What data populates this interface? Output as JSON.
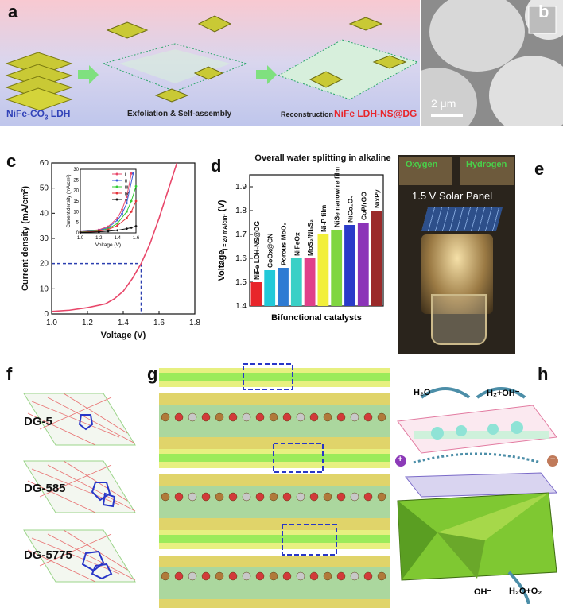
{
  "panels": {
    "a": {
      "label": "a",
      "text_ldh": "NiFe-CO",
      "text_ldh_sub": "3",
      "text_ldh_tail": " LDH",
      "text_exfoliation": "Exfoliation & Self-assembly",
      "text_reconstruction": "Reconstruction",
      "text_product": "NiFe LDH-NS@DG"
    },
    "b": {
      "label": "b",
      "scale_bar": "2 μm"
    },
    "c": {
      "label": "c"
    },
    "d": {
      "label": "d"
    },
    "e": {
      "label": "e",
      "oxygen": "Oxygen",
      "hydrogen": "Hydrogen",
      "panel_text": "1.5 V Solar Panel"
    },
    "f": {
      "label": "f",
      "structures": [
        "DG-5",
        "DG-585",
        "DG-5775"
      ]
    },
    "g": {
      "label": "g"
    },
    "h": {
      "label": "h",
      "h2o": "H₂O",
      "h2oh": "H₂+OH⁻",
      "oh": "OH⁻",
      "h2oo2": "H₂O+O₂",
      "plus": "+",
      "minus": "−"
    }
  },
  "chart_data": [
    {
      "type": "line",
      "panel": "c",
      "xlabel": "Voltage (V)",
      "ylabel": "Current density (mA/cm²)",
      "xlim": [
        1.0,
        1.8
      ],
      "ylim": [
        0,
        60
      ],
      "x_ticks": [
        "1.0",
        "1.2",
        "1.4",
        "1.6",
        "1.8"
      ],
      "y_ticks": [
        "0",
        "10",
        "20",
        "30",
        "40",
        "50",
        "60"
      ],
      "series": [
        {
          "x": [
            1.0,
            1.1,
            1.2,
            1.3,
            1.35,
            1.4,
            1.45,
            1.5,
            1.55,
            1.6,
            1.65,
            1.7
          ],
          "y": [
            1,
            1.5,
            2.5,
            4,
            6,
            9,
            14,
            20,
            28,
            38,
            49,
            60
          ],
          "color": "#e8476a"
        }
      ],
      "annotation": {
        "x": 1.5,
        "y": 20,
        "color": "#2b3fb0"
      },
      "inset": {
        "xlabel": "Voltage (V)",
        "ylabel": "Current density (mA/cm²)",
        "xlim": [
          1.0,
          1.6
        ],
        "ylim": [
          0,
          30
        ],
        "x_ticks": [
          "1.0",
          "1.2",
          "1.4",
          "1.6"
        ],
        "y_ticks": [
          "0",
          "5",
          "10",
          "15",
          "20",
          "25",
          "30"
        ],
        "legend": [
          "i",
          "ii",
          "iii",
          "iv",
          "v"
        ],
        "series": [
          {
            "name": "i",
            "color": "#e8476a",
            "x": [
              1.0,
              1.2,
              1.3,
              1.4,
              1.45,
              1.5,
              1.55
            ],
            "y": [
              0.5,
              1.5,
              3,
              7,
              11,
              17,
              28
            ]
          },
          {
            "name": "ii",
            "color": "#3b5bd9",
            "x": [
              1.0,
              1.2,
              1.3,
              1.4,
              1.45,
              1.5,
              1.57
            ],
            "y": [
              0.5,
              1.2,
              2.5,
              6,
              9,
              14,
              28
            ]
          },
          {
            "name": "iii",
            "color": "#33cc33",
            "x": [
              1.0,
              1.2,
              1.3,
              1.4,
              1.5,
              1.55,
              1.6
            ],
            "y": [
              0.4,
              1,
              2,
              4.5,
              10,
              15,
              22
            ]
          },
          {
            "name": "iv",
            "color": "#e5323a",
            "x": [
              1.0,
              1.2,
              1.3,
              1.4,
              1.5,
              1.55,
              1.6
            ],
            "y": [
              0.3,
              0.8,
              1.6,
              3.5,
              7,
              10,
              15
            ]
          },
          {
            "name": "v",
            "color": "#111111",
            "x": [
              1.0,
              1.2,
              1.3,
              1.4,
              1.5,
              1.55,
              1.6
            ],
            "y": [
              0.2,
              0.5,
              0.8,
              1.2,
              2,
              2.5,
              3.2
            ]
          }
        ]
      }
    },
    {
      "type": "bar",
      "panel": "d",
      "title": "Overall water splitting in alkaline",
      "xlabel": "Bifunctional catalysts",
      "ylabel": "Voltage",
      "ylabel_sub": "j = 20 mA/cm²",
      "ylabel_tail": " (V)",
      "ylim": [
        1.4,
        1.95
      ],
      "y_ticks": [
        "1.4",
        "1.5",
        "1.6",
        "1.7",
        "1.8",
        "1.9"
      ],
      "categories": [
        "NiFe LDH-NS@DG",
        "CoOx@CN",
        "Porous MoO₂",
        "NiFeOx",
        "MoS₂/Ni₃S₂",
        "Ni-P film",
        "NiSe nanowire film",
        "NiCo₂O₄",
        "CoP/rGO",
        "NixPy"
      ],
      "values": [
        1.5,
        1.55,
        1.56,
        1.6,
        1.6,
        1.7,
        1.72,
        1.74,
        1.75,
        1.8
      ],
      "colors": [
        "#e8252a",
        "#22c9d8",
        "#2e7bd3",
        "#3ad0c6",
        "#e0408a",
        "#f2ef3a",
        "#80d640",
        "#2a3bc9",
        "#8c34b8",
        "#9b2a2a"
      ]
    }
  ]
}
